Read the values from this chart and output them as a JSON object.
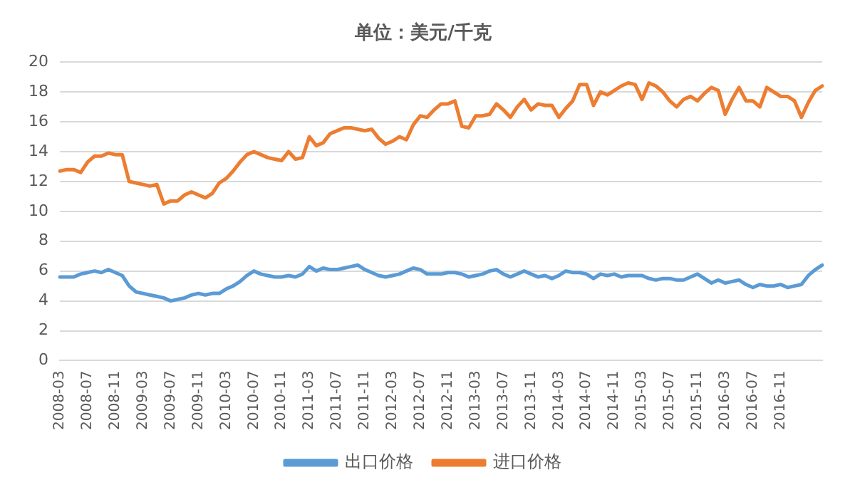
{
  "chart_data": {
    "type": "line",
    "title": "单位：美元/千克",
    "categories": [
      "2008-03",
      null,
      null,
      null,
      "2008-07",
      null,
      null,
      null,
      "2008-11",
      null,
      null,
      null,
      "2009-03",
      null,
      null,
      null,
      "2009-07",
      null,
      null,
      null,
      "2009-11",
      null,
      null,
      null,
      "2010-03",
      null,
      null,
      null,
      "2010-07",
      null,
      null,
      null,
      "2010-11",
      null,
      null,
      null,
      "2011-03",
      null,
      null,
      null,
      "2011-07",
      null,
      null,
      null,
      "2011-11",
      null,
      null,
      null,
      "2012-03",
      null,
      null,
      null,
      "2012-07",
      null,
      null,
      null,
      "2012-11",
      null,
      null,
      null,
      "2013-03",
      null,
      null,
      null,
      "2013-07",
      null,
      null,
      null,
      "2013-11",
      null,
      null,
      null,
      "2014-03",
      null,
      null,
      null,
      "2014-07",
      null,
      null,
      null,
      "2014-11",
      null,
      null,
      null,
      "2015-03",
      null,
      null,
      null,
      "2015-07",
      null,
      null,
      null,
      "2015-11",
      null,
      null,
      null,
      "2016-03",
      null,
      null,
      null,
      "2016-07",
      null,
      null,
      null,
      "2016-11",
      null,
      null,
      null,
      null,
      null,
      null
    ],
    "series": [
      {
        "name": "出口价格",
        "color": "#5b9bd5",
        "values": [
          5.6,
          5.6,
          5.6,
          5.8,
          5.9,
          6.0,
          5.9,
          6.1,
          5.9,
          5.7,
          5.0,
          4.6,
          4.5,
          4.4,
          4.3,
          4.2,
          4.0,
          4.1,
          4.2,
          4.4,
          4.5,
          4.4,
          4.5,
          4.5,
          4.8,
          5.0,
          5.3,
          5.7,
          6.0,
          5.8,
          5.7,
          5.6,
          5.6,
          5.7,
          5.6,
          5.8,
          6.3,
          6.0,
          6.2,
          6.1,
          6.1,
          6.2,
          6.3,
          6.4,
          6.1,
          5.9,
          5.7,
          5.6,
          5.7,
          5.8,
          6.0,
          6.2,
          6.1,
          5.8,
          5.8,
          5.8,
          5.9,
          5.9,
          5.8,
          5.6,
          5.7,
          5.8,
          6.0,
          6.1,
          5.8,
          5.6,
          5.8,
          6.0,
          5.8,
          5.6,
          5.7,
          5.5,
          5.7,
          6.0,
          5.9,
          5.9,
          5.8,
          5.5,
          5.8,
          5.7,
          5.8,
          5.6,
          5.7,
          5.7,
          5.7,
          5.5,
          5.4,
          5.5,
          5.5,
          5.4,
          5.4,
          5.6,
          5.8,
          5.5,
          5.2,
          5.4,
          5.2,
          5.3,
          5.4,
          5.1,
          4.9,
          5.1,
          5.0,
          5.0,
          5.1,
          4.9,
          5.0,
          5.1,
          5.7,
          6.1,
          6.4
        ]
      },
      {
        "name": "进口价格",
        "color": "#ed7d31",
        "values": [
          12.7,
          12.8,
          12.8,
          12.6,
          13.3,
          13.7,
          13.7,
          13.9,
          13.8,
          13.8,
          12.0,
          11.9,
          11.8,
          11.7,
          11.8,
          10.5,
          10.7,
          10.7,
          11.1,
          11.3,
          11.1,
          10.9,
          11.2,
          11.9,
          12.2,
          12.7,
          13.3,
          13.8,
          14.0,
          13.8,
          13.6,
          13.5,
          13.4,
          14.0,
          13.5,
          13.6,
          15.0,
          14.4,
          14.6,
          15.2,
          15.4,
          15.6,
          15.6,
          15.5,
          15.4,
          15.5,
          14.9,
          14.5,
          14.7,
          15.0,
          14.8,
          15.8,
          16.4,
          16.3,
          16.8,
          17.2,
          17.2,
          17.4,
          15.7,
          15.6,
          16.4,
          16.4,
          16.5,
          17.2,
          16.8,
          16.3,
          17.0,
          17.5,
          16.8,
          17.2,
          17.1,
          17.1,
          16.3,
          16.9,
          17.4,
          18.5,
          18.5,
          17.1,
          18.0,
          17.8,
          18.1,
          18.4,
          18.6,
          18.5,
          17.5,
          18.6,
          18.4,
          18.0,
          17.4,
          17.0,
          17.5,
          17.7,
          17.4,
          17.9,
          18.3,
          18.1,
          16.5,
          17.5,
          18.3,
          17.4,
          17.4,
          17.0,
          18.3,
          18.0,
          17.7,
          17.7,
          17.4,
          16.3,
          17.3,
          18.1,
          18.4
        ]
      }
    ],
    "ylim": [
      0,
      20
    ],
    "yticks": [
      0,
      2,
      4,
      6,
      8,
      10,
      12,
      14,
      16,
      18,
      20
    ],
    "grid": "y",
    "legend": "bottom",
    "marker": "none",
    "line_style": "solid"
  }
}
